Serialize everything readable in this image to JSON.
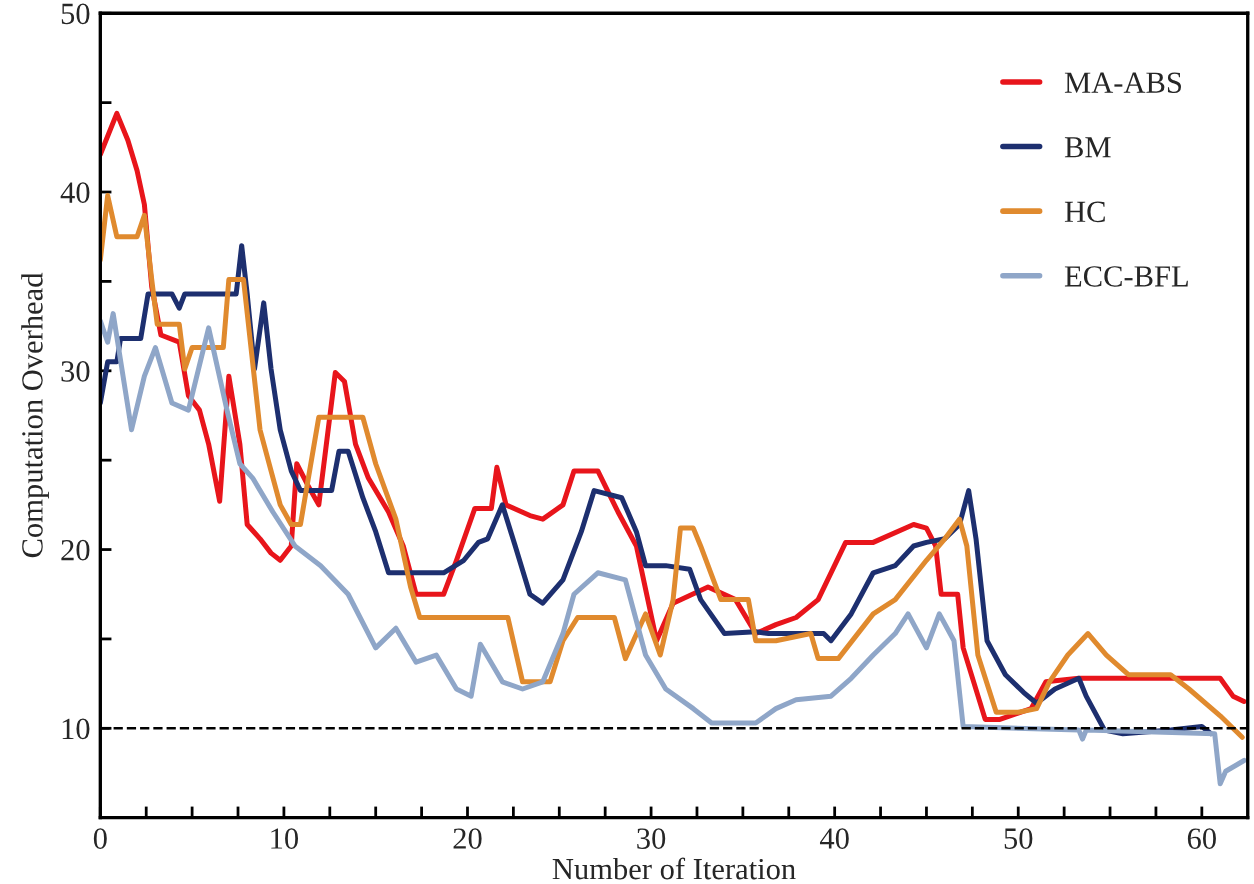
{
  "chart_data": {
    "type": "line",
    "xlabel": "Number of Iteration",
    "ylabel": "Computation Overhead",
    "xlim": [
      0,
      62.5
    ],
    "ylim": [
      5,
      50
    ],
    "xticks": [
      0,
      {
        "value": 2.5,
        "label": null
      },
      {
        "value": 5,
        "label": null
      },
      {
        "value": 7.5,
        "label": null
      },
      10,
      {
        "value": 12.5,
        "label": null
      },
      {
        "value": 15,
        "label": null
      },
      {
        "value": 17.5,
        "label": null
      },
      20,
      {
        "value": 22.5,
        "label": null
      },
      {
        "value": 25,
        "label": null
      },
      {
        "value": 27.5,
        "label": null
      },
      30,
      {
        "value": 32.5,
        "label": null
      },
      {
        "value": 35,
        "label": null
      },
      {
        "value": 37.5,
        "label": null
      },
      40,
      {
        "value": 42.5,
        "label": null
      },
      {
        "value": 45,
        "label": null
      },
      {
        "value": 47.5,
        "label": null
      },
      50,
      {
        "value": 52.5,
        "label": null
      },
      {
        "value": 55,
        "label": null
      },
      {
        "value": 57.5,
        "label": null
      },
      60
    ],
    "yticks": [
      10,
      {
        "value": 15,
        "label": null
      },
      20,
      {
        "value": 25,
        "label": null
      },
      30,
      {
        "value": 35,
        "label": null
      },
      40,
      {
        "value": 45,
        "label": null
      },
      50
    ],
    "legend": "top right",
    "grid": false,
    "marker": "none",
    "line_style": "solid",
    "ref_lines": [
      {
        "axis": "y",
        "value": 10,
        "color": "#000000",
        "line_style": "dashed"
      }
    ],
    "series": [
      {
        "name": "MA-ABS",
        "color": "#e8151b",
        "x": [
          0,
          0.9,
          1.5,
          2.0,
          2.4,
          2.8,
          3.3,
          4.3,
          4.8,
          5.4,
          5.9,
          6.5,
          7.0,
          7.6,
          8.0,
          8.7,
          9.3,
          9.8,
          10.4,
          10.7,
          11.3,
          11.9,
          12.8,
          13.3,
          13.9,
          14.6,
          15.7,
          16.5,
          17.2,
          18.7,
          19.4,
          20.4,
          21.3,
          21.6,
          22.1,
          23.4,
          24.1,
          25.2,
          25.8,
          27.1,
          28.2,
          29.2,
          30.3,
          31.2,
          33.1,
          34.6,
          35.7,
          36.8,
          37.9,
          39.1,
          40.6,
          42.1,
          44.3,
          45.0,
          45.5,
          45.8,
          46.7,
          47.0,
          48.2,
          49.0,
          50.7,
          51.5,
          53.3,
          61.0,
          61.7,
          62.3
        ],
        "values": [
          42.1,
          44.4,
          42.9,
          41.2,
          39.3,
          34.7,
          32.0,
          31.6,
          28.6,
          27.8,
          25.9,
          22.7,
          29.7,
          25.9,
          21.4,
          20.6,
          19.8,
          19.4,
          20.2,
          24.8,
          23.6,
          22.5,
          29.9,
          29.4,
          25.9,
          24.0,
          22.1,
          20.2,
          17.5,
          17.5,
          19.4,
          22.3,
          22.3,
          24.6,
          22.5,
          21.9,
          21.7,
          22.5,
          24.4,
          24.4,
          22.1,
          20.2,
          14.9,
          17.0,
          17.9,
          17.2,
          15.3,
          15.8,
          16.2,
          17.2,
          20.4,
          20.4,
          21.4,
          21.2,
          20.2,
          17.5,
          17.5,
          14.5,
          10.5,
          10.5,
          11.1,
          12.6,
          12.8,
          12.8,
          11.8,
          11.5
        ]
      },
      {
        "name": "BM",
        "color": "#1d2f6f",
        "x": [
          0,
          0.4,
          0.9,
          1.1,
          2.2,
          2.6,
          3.9,
          4.3,
          4.6,
          7.4,
          7.7,
          8.0,
          8.4,
          8.9,
          9.3,
          9.8,
          10.4,
          10.9,
          12.6,
          13.0,
          13.5,
          14.3,
          15.0,
          15.7,
          18.7,
          19.8,
          20.6,
          21.1,
          21.9,
          22.6,
          23.4,
          24.1,
          25.2,
          26.2,
          26.9,
          28.4,
          29.2,
          29.7,
          30.8,
          32.1,
          32.7,
          34.0,
          35.7,
          36.4,
          39.4,
          39.8,
          40.9,
          42.1,
          43.3,
          44.3,
          45.0,
          46.0,
          46.8,
          47.3,
          47.7,
          48.3,
          49.3,
          50.3,
          51.0,
          52.0,
          53.3,
          53.7,
          54.7,
          55.7,
          58.3,
          60.0,
          60.5
        ],
        "values": [
          28.2,
          30.5,
          30.5,
          31.8,
          31.8,
          34.3,
          34.3,
          33.5,
          34.3,
          34.3,
          37.0,
          34.3,
          30.1,
          33.8,
          30.1,
          26.7,
          24.4,
          23.3,
          23.3,
          25.5,
          25.5,
          22.9,
          21.0,
          18.7,
          18.7,
          19.4,
          20.4,
          20.6,
          22.5,
          20.2,
          17.5,
          17.0,
          18.3,
          21.0,
          23.3,
          22.9,
          21.0,
          19.1,
          19.1,
          18.9,
          17.2,
          15.3,
          15.4,
          15.3,
          15.3,
          14.9,
          16.4,
          18.7,
          19.1,
          20.2,
          20.4,
          20.6,
          21.4,
          23.3,
          20.6,
          14.9,
          13.0,
          12.0,
          11.4,
          12.2,
          12.8,
          11.8,
          9.9,
          9.7,
          9.9,
          10.1,
          9.7
        ]
      },
      {
        "name": "HC",
        "color": "#e08a2e",
        "x": [
          0,
          0.4,
          0.9,
          2.0,
          2.4,
          2.8,
          3.1,
          4.3,
          4.6,
          5.0,
          6.7,
          7.0,
          7.8,
          8.7,
          9.3,
          9.8,
          10.4,
          10.9,
          11.9,
          14.3,
          15.0,
          16.1,
          16.9,
          17.4,
          22.2,
          23.0,
          24.5,
          25.2,
          26.0,
          28.0,
          28.6,
          29.7,
          30.5,
          31.2,
          31.6,
          32.3,
          32.7,
          33.8,
          35.3,
          35.7,
          36.8,
          38.7,
          39.1,
          40.2,
          42.1,
          43.3,
          45.0,
          46.0,
          46.8,
          47.2,
          47.8,
          48.8,
          50.0,
          51.0,
          51.7,
          52.7,
          53.8,
          54.8,
          56.0,
          58.3,
          59.3,
          61.0,
          62.2
        ],
        "values": [
          36.2,
          39.8,
          37.5,
          37.5,
          38.7,
          35.1,
          32.6,
          32.6,
          30.1,
          31.3,
          31.3,
          35.1,
          35.1,
          26.7,
          24.4,
          22.5,
          21.4,
          21.4,
          27.4,
          27.4,
          24.8,
          21.7,
          17.9,
          16.2,
          16.2,
          12.6,
          12.6,
          14.9,
          16.2,
          16.2,
          13.9,
          16.4,
          14.1,
          17.2,
          21.2,
          21.2,
          20.2,
          17.2,
          17.2,
          14.9,
          14.9,
          15.3,
          13.9,
          13.9,
          16.4,
          17.2,
          19.4,
          20.6,
          21.7,
          20.2,
          14.1,
          10.9,
          10.9,
          11.1,
          12.6,
          14.1,
          15.3,
          14.1,
          13.0,
          13.0,
          12.2,
          10.7,
          9.5
        ]
      },
      {
        "name": "ECC-BFL",
        "color": "#8fa6c8",
        "x": [
          0,
          0.4,
          0.7,
          1.7,
          2.4,
          3.0,
          3.9,
          4.8,
          5.9,
          6.9,
          7.6,
          8.3,
          9.4,
          10.6,
          12.0,
          13.5,
          15.0,
          16.1,
          17.2,
          18.3,
          19.4,
          20.2,
          20.7,
          21.9,
          23.0,
          24.1,
          25.2,
          25.8,
          27.1,
          28.6,
          29.7,
          30.8,
          32.3,
          33.3,
          35.7,
          36.8,
          37.9,
          39.8,
          40.9,
          42.1,
          43.3,
          44.0,
          45.0,
          45.7,
          46.5,
          47.0,
          53.3,
          53.5,
          53.7,
          60.7,
          61.0,
          61.3,
          62.3
        ],
        "values": [
          32.8,
          31.6,
          33.2,
          26.7,
          29.7,
          31.3,
          28.2,
          27.8,
          32.4,
          27.8,
          24.8,
          24.0,
          22.1,
          20.2,
          19.1,
          17.5,
          14.5,
          15.6,
          13.7,
          14.1,
          12.2,
          11.8,
          14.7,
          12.6,
          12.2,
          12.6,
          15.3,
          17.5,
          18.7,
          18.3,
          14.1,
          12.2,
          11.1,
          10.3,
          10.3,
          11.1,
          11.6,
          11.8,
          12.8,
          14.1,
          15.3,
          16.4,
          14.5,
          16.4,
          14.9,
          10.1,
          9.9,
          9.4,
          9.9,
          9.7,
          6.9,
          7.6,
          8.2
        ]
      }
    ]
  }
}
